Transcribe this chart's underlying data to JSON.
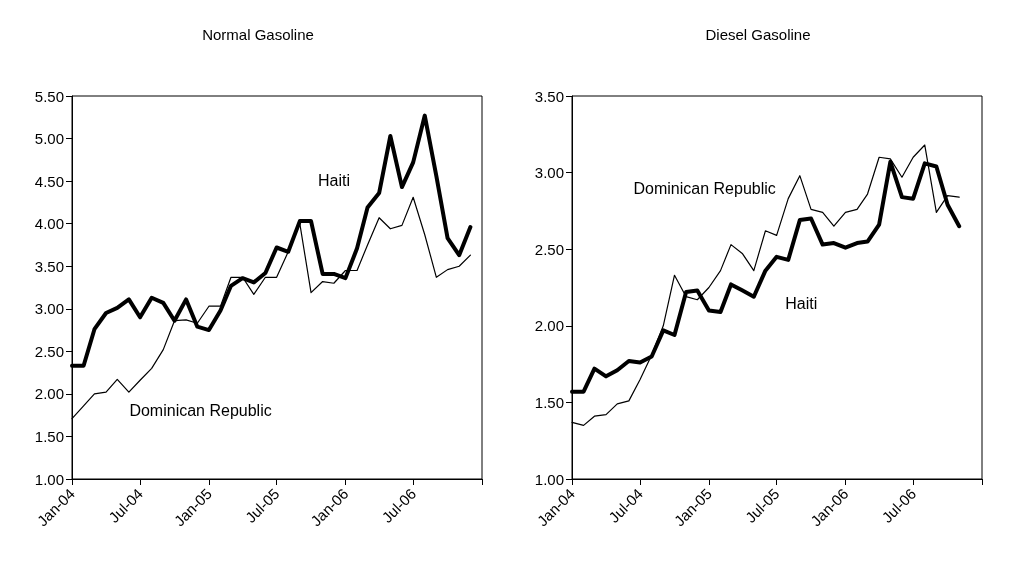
{
  "chart_data": [
    {
      "type": "line",
      "title": "Normal Gasoline",
      "x": [
        "2004-01",
        "2004-02",
        "2004-03",
        "2004-04",
        "2004-05",
        "2004-06",
        "2004-07",
        "2004-08",
        "2004-09",
        "2004-10",
        "2004-11",
        "2004-12",
        "2005-01",
        "2005-02",
        "2005-03",
        "2005-04",
        "2005-05",
        "2005-06",
        "2005-07",
        "2005-08",
        "2005-09",
        "2005-10",
        "2005-11",
        "2005-12",
        "2006-01",
        "2006-02",
        "2006-03",
        "2006-04",
        "2006-05",
        "2006-06",
        "2006-07",
        "2006-08",
        "2006-09",
        "2006-10",
        "2006-11",
        "2006-12"
      ],
      "series": [
        {
          "name": "Haiti",
          "color": "#000000",
          "values": [
            2.33,
            2.33,
            2.76,
            2.95,
            3.01,
            3.11,
            2.9,
            3.13,
            3.07,
            2.86,
            3.11,
            2.79,
            2.75,
            2.98,
            3.27,
            3.36,
            3.31,
            3.42,
            3.72,
            3.67,
            4.03,
            4.03,
            3.41,
            3.41,
            3.36,
            3.71,
            4.19,
            4.36,
            5.03,
            4.43,
            4.72,
            5.27,
            4.56,
            3.83,
            3.63,
            3.96
          ]
        },
        {
          "name": "Dominican Republic",
          "color": "#000000",
          "values": [
            1.71,
            1.86,
            2.0,
            2.02,
            2.17,
            2.02,
            2.16,
            2.3,
            2.52,
            2.86,
            2.87,
            2.83,
            3.03,
            3.03,
            3.37,
            3.37,
            3.17,
            3.37,
            3.37,
            3.67,
            4.0,
            3.19,
            3.32,
            3.3,
            3.45,
            3.45,
            3.75,
            4.07,
            3.94,
            3.98,
            4.31,
            3.87,
            3.37,
            3.46,
            3.5,
            3.63
          ]
        }
      ],
      "xlim": [
        "2004-01",
        "2007-01"
      ],
      "xticks": [
        {
          "value": "2004-01",
          "label": "Jan-04"
        },
        {
          "value": "2004-07",
          "label": "Jul-04"
        },
        {
          "value": "2005-01",
          "label": "Jan-05"
        },
        {
          "value": "2005-07",
          "label": "Jul-05"
        },
        {
          "value": "2006-01",
          "label": "Jan-06"
        },
        {
          "value": "2006-07",
          "label": "Jul-06"
        },
        {
          "value": "2007-01",
          "label": null
        }
      ],
      "ylim": [
        1,
        5.5
      ],
      "yticks": [
        {
          "value": 1,
          "label": "1.00"
        },
        {
          "value": 1.5,
          "label": "1.50"
        },
        {
          "value": 2,
          "label": "2.00"
        },
        {
          "value": 2.5,
          "label": "2.50"
        },
        {
          "value": 3,
          "label": "3.00"
        },
        {
          "value": 3.5,
          "label": "3.50"
        },
        {
          "value": 4,
          "label": "4.00"
        },
        {
          "value": 4.5,
          "label": "4.50"
        },
        {
          "value": 5,
          "label": "5.00"
        },
        {
          "value": 5.5,
          "label": "5.50"
        }
      ],
      "grid": false,
      "legend": false,
      "marker": "none",
      "line_style": "solid"
    },
    {
      "type": "line",
      "title": "Diesel Gasoline",
      "x": [
        "2004-01",
        "2004-02",
        "2004-03",
        "2004-04",
        "2004-05",
        "2004-06",
        "2004-07",
        "2004-08",
        "2004-09",
        "2004-10",
        "2004-11",
        "2004-12",
        "2005-01",
        "2005-02",
        "2005-03",
        "2005-04",
        "2005-05",
        "2005-06",
        "2005-07",
        "2005-08",
        "2005-09",
        "2005-10",
        "2005-11",
        "2005-12",
        "2006-01",
        "2006-02",
        "2006-03",
        "2006-04",
        "2006-05",
        "2006-06",
        "2006-07",
        "2006-08",
        "2006-09",
        "2006-10",
        "2006-11"
      ],
      "series": [
        {
          "name": "Dominican Republic",
          "color": "#000000",
          "values": [
            1.37,
            1.35,
            1.41,
            1.42,
            1.49,
            1.51,
            1.65,
            1.81,
            2.0,
            2.33,
            2.19,
            2.17,
            2.25,
            2.36,
            2.53,
            2.47,
            2.36,
            2.62,
            2.59,
            2.83,
            2.98,
            2.76,
            2.74,
            2.65,
            2.74,
            2.76,
            2.86,
            3.1,
            3.09,
            2.97,
            3.1,
            3.18,
            2.74,
            2.85,
            2.84
          ]
        },
        {
          "name": "Haiti",
          "color": "#000000",
          "values": [
            1.57,
            1.57,
            1.72,
            1.67,
            1.71,
            1.77,
            1.76,
            1.8,
            1.97,
            1.94,
            2.22,
            2.23,
            2.1,
            2.09,
            2.27,
            2.23,
            2.19,
            2.36,
            2.45,
            2.43,
            2.69,
            2.7,
            2.53,
            2.54,
            2.51,
            2.54,
            2.55,
            2.66,
            3.07,
            2.84,
            2.83,
            3.06,
            3.04,
            2.79,
            2.65
          ]
        }
      ],
      "xlim": [
        "2004-01",
        "2007-01"
      ],
      "xticks": [
        {
          "value": "2004-01",
          "label": "Jan-04"
        },
        {
          "value": "2004-07",
          "label": "Jul-04"
        },
        {
          "value": "2005-01",
          "label": "Jan-05"
        },
        {
          "value": "2005-07",
          "label": "Jul-05"
        },
        {
          "value": "2006-01",
          "label": "Jan-06"
        },
        {
          "value": "2006-07",
          "label": "Jul-06"
        },
        {
          "value": "2007-01",
          "label": null
        }
      ],
      "ylim": [
        1,
        3.5
      ],
      "yticks": [
        {
          "value": 1,
          "label": "1.00"
        },
        {
          "value": 1.5,
          "label": "1.50"
        },
        {
          "value": 2,
          "label": "2.00"
        },
        {
          "value": 2.5,
          "label": "2.50"
        },
        {
          "value": 3,
          "label": "3.00"
        },
        {
          "value": 3.5,
          "label": "3.50"
        }
      ],
      "grid": false,
      "legend": false,
      "marker": "none",
      "line_style": "solid"
    }
  ]
}
